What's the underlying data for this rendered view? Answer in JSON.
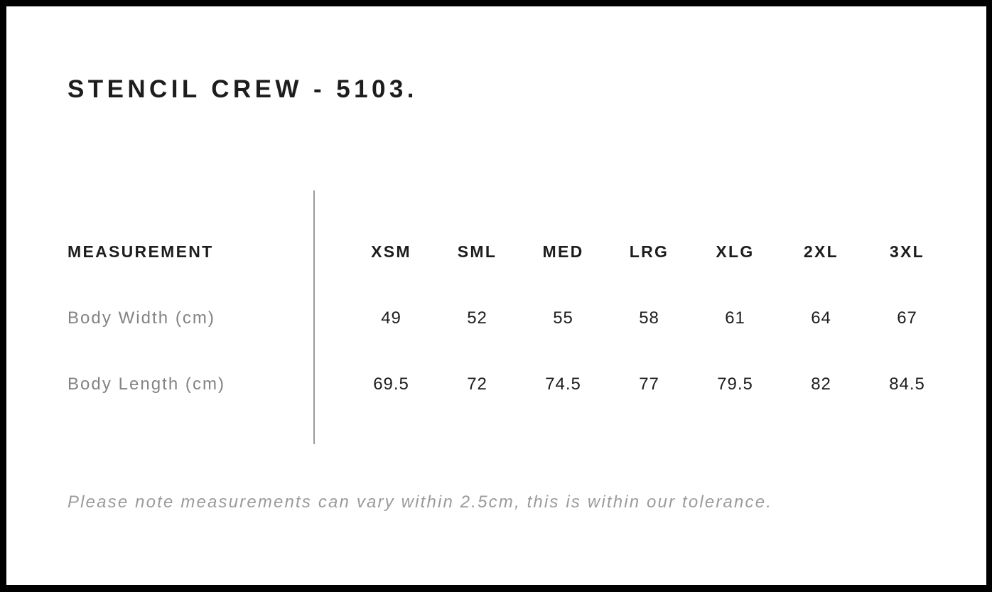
{
  "title": "STENCIL CREW - 5103.",
  "table": {
    "label_header": "MEASUREMENT",
    "size_headers": [
      "XSM",
      "SML",
      "MED",
      "LRG",
      "XLG",
      "2XL",
      "3XL"
    ],
    "rows": [
      {
        "label": "Body Width (cm)",
        "values": [
          "49",
          "52",
          "55",
          "58",
          "61",
          "64",
          "67"
        ]
      },
      {
        "label": "Body Length (cm)",
        "values": [
          "69.5",
          "72",
          "74.5",
          "77",
          "79.5",
          "82",
          "84.5"
        ]
      }
    ]
  },
  "note": "Please note measurements can vary within 2.5cm, this is within our tolerance.",
  "colors": {
    "frame": "#000000",
    "heading_text": "#1d1d1d",
    "label_text": "#838383",
    "note_text": "#9b9b9b",
    "divider": "#9b9b9b",
    "background": "#ffffff"
  }
}
